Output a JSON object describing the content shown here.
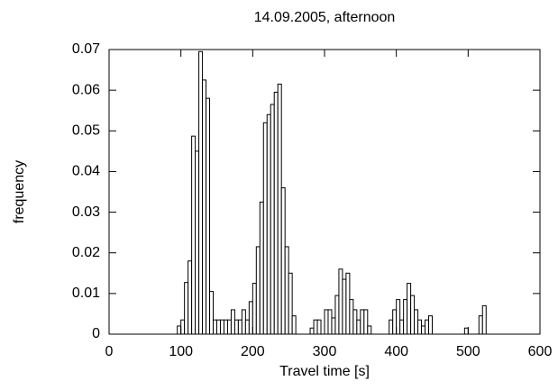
{
  "chart_data": {
    "type": "histogram",
    "title": "14.09.2005, afternoon",
    "x_label": "Travel time [s]",
    "y_label": "frequency",
    "bins": [
      95,
      100,
      105,
      110,
      115,
      120,
      125,
      130,
      135,
      140,
      145,
      150,
      155,
      160,
      165,
      170,
      175,
      180,
      185,
      190,
      195,
      200,
      205,
      210,
      215,
      220,
      225,
      230,
      235,
      240,
      245,
      250,
      255,
      260,
      265,
      270,
      275,
      280,
      285,
      290,
      295,
      300,
      305,
      310,
      315,
      320,
      325,
      330,
      335,
      340,
      345,
      350,
      355,
      360,
      365,
      370,
      375,
      380,
      385,
      390,
      395,
      400,
      405,
      410,
      415,
      420,
      425,
      430,
      435,
      440,
      445,
      450,
      455,
      460,
      465,
      470,
      475,
      480,
      485,
      490,
      495,
      500,
      505,
      510,
      515,
      520,
      525
    ],
    "values": [
      0.002,
      0.0035,
      0.0127,
      0.018,
      0.0487,
      0.045,
      0.0695,
      0.0625,
      0.058,
      0.0105,
      0.0035,
      0.0035,
      0.0035,
      0.0035,
      0.0035,
      0.006,
      0.0035,
      0.0035,
      0.006,
      0.0035,
      0.008,
      0.0125,
      0.0215,
      0.0325,
      0.052,
      0.054,
      0.0565,
      0.0595,
      0.0615,
      0.036,
      0.0215,
      0.015,
      0.0045,
      0,
      0,
      0,
      0,
      0.0015,
      0.0035,
      0.0035,
      0,
      0.006,
      0.006,
      0.004,
      0.0095,
      0.016,
      0.0135,
      0.015,
      0.0085,
      0.006,
      0.0035,
      0.006,
      0.006,
      0.002,
      0,
      0,
      0,
      0,
      0,
      0.0035,
      0.006,
      0.0085,
      0.0035,
      0.0085,
      0.0125,
      0.0095,
      0.006,
      0.0035,
      0.002,
      0.0035,
      0.0045,
      0,
      0,
      0,
      0,
      0,
      0,
      0,
      0,
      0,
      0.0015,
      0,
      0,
      0,
      0.0045,
      0.007
    ],
    "color": "#ffffff",
    "edge_color": "#000000",
    "xlim": [
      0,
      600
    ],
    "xticks": [
      0,
      100,
      200,
      300,
      400,
      500,
      600
    ],
    "ylim": [
      0,
      0.07
    ],
    "yticks": [
      0,
      0.01,
      0.02,
      0.03,
      0.04,
      0.05,
      0.06,
      0.07
    ]
  }
}
